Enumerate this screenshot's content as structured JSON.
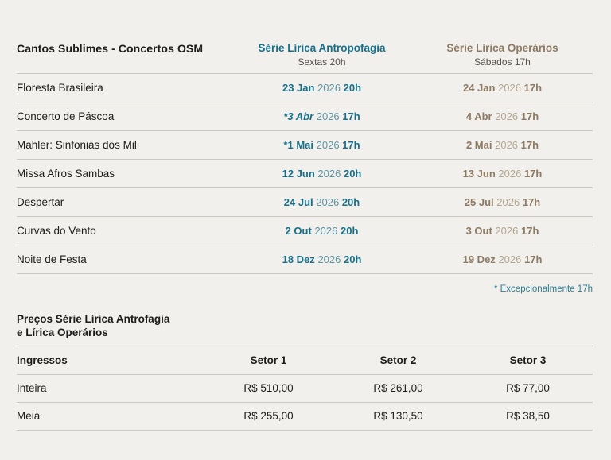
{
  "colors": {
    "background": "#f2f0ed",
    "teal_accent": "#17708a",
    "teal_muted": "#5d95a3",
    "bronze_accent": "#8d7a63",
    "bronze_muted": "#b2a68f",
    "text": "#1d1c1a",
    "divider": "#ccc7c0"
  },
  "schedule_table": {
    "title": "Cantos Sublimes - Concertos OSM",
    "columns": [
      {
        "name": "Série Lírica Antropofagia",
        "subtitle": "Sextas 20h"
      },
      {
        "name": "Série Lírica Operários",
        "subtitle": "Sábados 17h"
      }
    ],
    "rows": [
      {
        "program": "Floresta Brasileira",
        "antropofagia": {
          "day": "23 Jan",
          "year": "2026",
          "time": "20h",
          "italic": false
        },
        "operarios": {
          "day": "24 Jan",
          "year": "2026",
          "time": "17h"
        }
      },
      {
        "program": "Concerto de Páscoa",
        "antropofagia": {
          "day": "*3 Abr",
          "year": "2026",
          "time": "17h",
          "italic": true
        },
        "operarios": {
          "day": "4 Abr",
          "year": "2026",
          "time": "17h"
        }
      },
      {
        "program": "Mahler: Sinfonias dos Mil",
        "antropofagia": {
          "day": "*1 Mai",
          "year": "2026",
          "time": "17h",
          "italic": false
        },
        "operarios": {
          "day": "2 Mai",
          "year": "2026",
          "time": "17h"
        }
      },
      {
        "program": "Missa Afros Sambas",
        "antropofagia": {
          "day": "12 Jun",
          "year": "2026",
          "time": "20h",
          "italic": false
        },
        "operarios": {
          "day": "13 Jun",
          "year": "2026",
          "time": "17h"
        }
      },
      {
        "program": "Despertar",
        "antropofagia": {
          "day": "24 Jul",
          "year": "2026",
          "time": "20h",
          "italic": false
        },
        "operarios": {
          "day": "25 Jul",
          "year": "2026",
          "time": "17h"
        }
      },
      {
        "program": "Curvas do Vento",
        "antropofagia": {
          "day": "2 Out",
          "year": "2026",
          "time": "20h",
          "italic": false
        },
        "operarios": {
          "day": "3 Out",
          "year": "2026",
          "time": "17h"
        }
      },
      {
        "program": "Noite de Festa",
        "antropofagia": {
          "day": "18 Dez",
          "year": "2026",
          "time": "20h",
          "italic": false
        },
        "operarios": {
          "day": "19 Dez",
          "year": "2026",
          "time": "17h"
        }
      }
    ],
    "footnote": "* Excepcionalmente 17h"
  },
  "prices_table": {
    "title_line1": "Preços Série Lírica Antrofagia",
    "title_line2": "e Lírica Operários",
    "header": {
      "label": "Ingressos",
      "col1": "Setor 1",
      "col2": "Setor 2",
      "col3": "Setor 3"
    },
    "rows": [
      {
        "label": "Inteira",
        "values": [
          "R$ 510,00",
          "R$ 261,00",
          "R$ 77,00"
        ]
      },
      {
        "label": "Meia",
        "values": [
          "R$ 255,00",
          "R$ 130,50",
          "R$ 38,50"
        ]
      }
    ]
  }
}
